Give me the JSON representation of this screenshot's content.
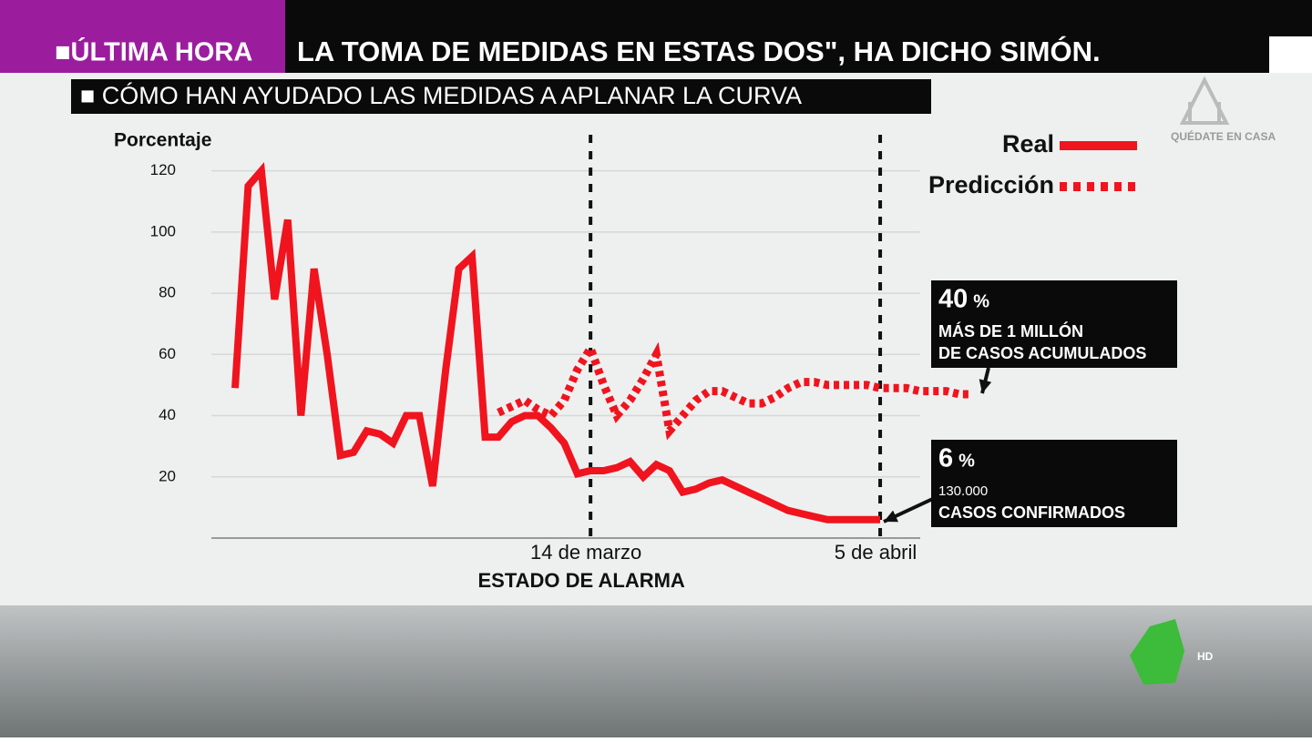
{
  "ticker": {
    "label": "■ÚLTIMA HORA",
    "text": "LA TOMA DE MEDIDAS EN ESTAS DOS\", HA DICHO SIMÓN."
  },
  "headline": "■ CÓMO HAN AYUDADO LAS MEDIDAS A APLANAR LA CURVA",
  "logo": {
    "text": "QUÉDATE EN CASA",
    "badge": "HD"
  },
  "chart_data": {
    "type": "line",
    "ylabel": "Porcentaje",
    "ylim": [
      0,
      130
    ],
    "yticks": [
      20,
      40,
      60,
      80,
      100,
      120
    ],
    "grid": true,
    "legend": "upper right",
    "categories": [
      null,
      null,
      null,
      null,
      null,
      null,
      null,
      null,
      null,
      null,
      null,
      null,
      null,
      null,
      null,
      null,
      null,
      null,
      null,
      null,
      null,
      null,
      null,
      null,
      null,
      null,
      null,
      "14 de marzo",
      null,
      null,
      null,
      null,
      null,
      null,
      null,
      null,
      null,
      null,
      null,
      null,
      null,
      null,
      null,
      null,
      null,
      null,
      null,
      null,
      null,
      "5 de abril",
      null,
      null,
      null,
      null,
      null,
      null,
      null
    ],
    "series": [
      {
        "name": "Real",
        "color": "#f0141e",
        "values": [
          49,
          115,
          120,
          78,
          104,
          40,
          88,
          60,
          27,
          28,
          35,
          34,
          31,
          40,
          40,
          17,
          55,
          88,
          92,
          33,
          33,
          38,
          40,
          40,
          36,
          31,
          21,
          22,
          22,
          23,
          25,
          20,
          24,
          22,
          15,
          16,
          18,
          19,
          17,
          15,
          13,
          11,
          9,
          8,
          7,
          6,
          6,
          6,
          6,
          6,
          null,
          null,
          null,
          null,
          null,
          null,
          null
        ]
      },
      {
        "name": "Predicción",
        "color": "#f0141e",
        "dashed": true,
        "values": [
          null,
          null,
          null,
          null,
          null,
          null,
          null,
          null,
          null,
          null,
          null,
          null,
          null,
          null,
          null,
          null,
          null,
          null,
          null,
          null,
          41,
          43,
          45,
          42,
          40,
          45,
          55,
          62,
          50,
          40,
          45,
          52,
          60,
          35,
          40,
          45,
          48,
          48,
          46,
          44,
          44,
          46,
          49,
          51,
          51,
          50,
          50,
          50,
          50,
          49,
          49,
          49,
          48,
          48,
          48,
          47,
          47
        ]
      }
    ],
    "event_label": "ESTADO DE ALARMA",
    "annotations": [
      {
        "value": "40",
        "unit": "%",
        "lines": [
          "MÁS DE 1 MILLÓN",
          "DE CASOS ACUMULADOS"
        ]
      },
      {
        "value": "6",
        "unit": "%",
        "lines": [
          "130.000",
          "CASOS CONFIRMADOS"
        ]
      }
    ]
  }
}
